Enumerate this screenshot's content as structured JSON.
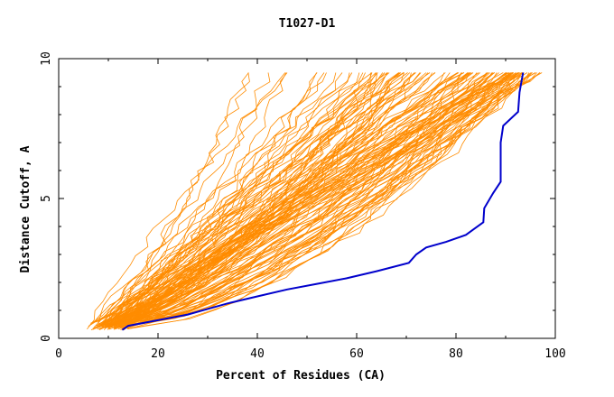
{
  "chart_data": {
    "type": "line",
    "title": "T1027-D1",
    "xlabel": "Percent of Residues (CA)",
    "ylabel": "Distance Cutoff, A",
    "xlim": [
      0,
      100
    ],
    "ylim": [
      0,
      10
    ],
    "x_ticks": [
      0,
      20,
      40,
      60,
      80,
      100
    ],
    "x_tick_labels": [
      "0",
      "20",
      "40",
      "60",
      "80",
      "100"
    ],
    "y_ticks": [
      0,
      5,
      10
    ],
    "y_tick_labels": [
      "0",
      "5",
      "10"
    ],
    "grid": false,
    "legend": "none",
    "colors": {
      "highlight": "#0000cc",
      "others": "#ff8c00",
      "axis": "#000000"
    },
    "highlight_series": {
      "points": [
        [
          12.8,
          0.3
        ],
        [
          14,
          0.45
        ],
        [
          20,
          0.65
        ],
        [
          26,
          0.85
        ],
        [
          30,
          1.05
        ],
        [
          34,
          1.25
        ],
        [
          40,
          1.5
        ],
        [
          46,
          1.75
        ],
        [
          52,
          1.95
        ],
        [
          58,
          2.15
        ],
        [
          64,
          2.4
        ],
        [
          70.5,
          2.7
        ],
        [
          72,
          3.0
        ],
        [
          74,
          3.25
        ],
        [
          78,
          3.45
        ],
        [
          82,
          3.7
        ],
        [
          85.5,
          4.15
        ],
        [
          85.7,
          4.65
        ],
        [
          87.5,
          5.2
        ],
        [
          89,
          5.6
        ],
        [
          89,
          7.0
        ],
        [
          89.5,
          7.6
        ],
        [
          92.5,
          8.1
        ],
        [
          92.8,
          8.8
        ],
        [
          93.5,
          9.5
        ]
      ]
    },
    "other_series_envelope": [
      {
        "start_x": 6.0,
        "end_x": 39.0
      },
      {
        "start_x": 8.0,
        "end_x": 62.0
      },
      {
        "start_x": 9.0,
        "end_x": 70.0
      },
      {
        "start_x": 10.5,
        "end_x": 80.0
      },
      {
        "start_x": 11.5,
        "end_x": 86.0
      },
      {
        "start_x": 12.5,
        "end_x": 92.0
      },
      {
        "start_x": 14.0,
        "end_x": 96.5
      }
    ]
  }
}
